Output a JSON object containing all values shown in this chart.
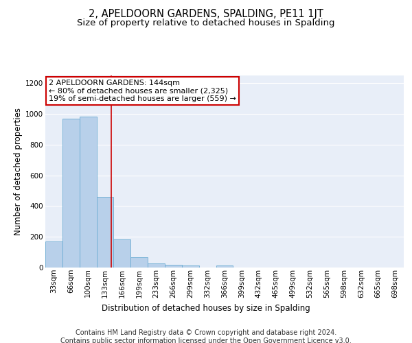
{
  "title": "2, APELDOORN GARDENS, SPALDING, PE11 1JT",
  "subtitle": "Size of property relative to detached houses in Spalding",
  "xlabel": "Distribution of detached houses by size in Spalding",
  "ylabel": "Number of detached properties",
  "footer_line1": "Contains HM Land Registry data © Crown copyright and database right 2024.",
  "footer_line2": "Contains public sector information licensed under the Open Government Licence v3.0.",
  "bin_labels": [
    "33sqm",
    "66sqm",
    "100sqm",
    "133sqm",
    "166sqm",
    "199sqm",
    "233sqm",
    "266sqm",
    "299sqm",
    "332sqm",
    "366sqm",
    "399sqm",
    "432sqm",
    "465sqm",
    "499sqm",
    "532sqm",
    "565sqm",
    "598sqm",
    "632sqm",
    "665sqm",
    "698sqm"
  ],
  "bar_values": [
    170,
    970,
    980,
    460,
    185,
    65,
    25,
    18,
    12,
    0,
    12,
    0,
    0,
    0,
    0,
    0,
    0,
    0,
    0,
    0,
    0
  ],
  "bar_color": "#b8d0ea",
  "bar_edge_color": "#6aabd2",
  "annotation_line1": "2 APELDOORN GARDENS: 144sqm",
  "annotation_line2": "← 80% of detached houses are smaller (2,325)",
  "annotation_line3": "19% of semi-detached houses are larger (559) →",
  "vline_x": 3.35,
  "vline_color": "#cc0000",
  "annotation_box_edge": "#cc0000",
  "ylim": [
    0,
    1250
  ],
  "yticks": [
    0,
    200,
    400,
    600,
    800,
    1000,
    1200
  ],
  "bg_color": "#e8eef8",
  "grid_color": "#ffffff",
  "title_fontsize": 10.5,
  "subtitle_fontsize": 9.5,
  "axis_label_fontsize": 8.5,
  "tick_fontsize": 7.5,
  "annotation_fontsize": 8,
  "footer_fontsize": 7
}
